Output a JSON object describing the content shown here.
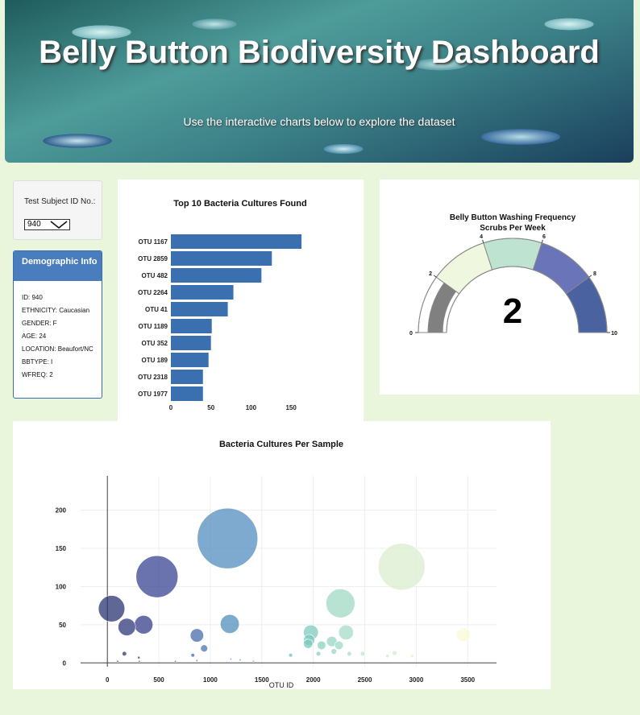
{
  "header": {
    "title": "Belly Button Biodiversity Dashboard",
    "subtitle": "Use the interactive charts below to explore the dataset"
  },
  "selector": {
    "label": "Test Subject ID No.:",
    "value": "940"
  },
  "demographics": {
    "title": "Demographic Info",
    "items": [
      "ID: 940",
      "ETHNICITY: Caucasian",
      "GENDER: F",
      "AGE: 24",
      "LOCATION: Beaufort/NC",
      "BBTYPE: I",
      "WFREQ: 2"
    ]
  },
  "colors": {
    "bar": "#3a6fb0",
    "axis": "#444",
    "grid": "#eeeeee"
  },
  "chart_data": [
    {
      "type": "bar",
      "orientation": "horizontal",
      "title": "Top 10 Bacteria Cultures Found",
      "categories": [
        "OTU 1167",
        "OTU 2859",
        "OTU 482",
        "OTU 2264",
        "OTU 41",
        "OTU 1189",
        "OTU 352",
        "OTU 189",
        "OTU 2318",
        "OTU 1977"
      ],
      "values": [
        163,
        126,
        113,
        78,
        71,
        51,
        50,
        47,
        40,
        40
      ],
      "xticks": [
        0,
        50,
        100,
        150
      ],
      "xlim": [
        0,
        170
      ]
    },
    {
      "type": "gauge",
      "title": "Belly Button Washing Frequency",
      "subtitle": "Scrubs Per Week",
      "value": 2,
      "value_label": "2",
      "range": [
        0,
        10
      ],
      "ticks": [
        0,
        2,
        4,
        6,
        8,
        10
      ],
      "bands": [
        {
          "from": 0,
          "to": 2,
          "color": "#ffffff"
        },
        {
          "from": 2,
          "to": 4,
          "color": "#eff7df"
        },
        {
          "from": 4,
          "to": 6,
          "color": "#bfe3d1"
        },
        {
          "from": 6,
          "to": 8,
          "color": "#6a74b8"
        },
        {
          "from": 8,
          "to": 10,
          "color": "#4a62a0"
        }
      ],
      "bar_color": "#808080"
    },
    {
      "type": "scatter",
      "title": "Bacteria Cultures Per Sample",
      "xlabel": "OTU ID",
      "xticks": [
        0,
        500,
        1000,
        1500,
        2000,
        2500,
        3000,
        3500
      ],
      "yticks": [
        0,
        50,
        100,
        150,
        200
      ],
      "xlim": [
        -260,
        3780
      ],
      "ylim": [
        -5,
        245
      ],
      "points": [
        {
          "x": 41,
          "y": 71
        },
        {
          "x": 189,
          "y": 47
        },
        {
          "x": 352,
          "y": 50
        },
        {
          "x": 482,
          "y": 113
        },
        {
          "x": 1167,
          "y": 163
        },
        {
          "x": 1189,
          "y": 51
        },
        {
          "x": 2859,
          "y": 126
        },
        {
          "x": 2264,
          "y": 78
        },
        {
          "x": 1977,
          "y": 40
        },
        {
          "x": 2318,
          "y": 40
        },
        {
          "x": 870,
          "y": 36
        },
        {
          "x": 940,
          "y": 19
        },
        {
          "x": 165,
          "y": 12
        },
        {
          "x": 305,
          "y": 7
        },
        {
          "x": 830,
          "y": 10
        },
        {
          "x": 1960,
          "y": 30
        },
        {
          "x": 1950,
          "y": 25
        },
        {
          "x": 2080,
          "y": 23
        },
        {
          "x": 2180,
          "y": 28
        },
        {
          "x": 2250,
          "y": 23
        },
        {
          "x": 2200,
          "y": 15
        },
        {
          "x": 2350,
          "y": 12
        },
        {
          "x": 2050,
          "y": 12
        },
        {
          "x": 1780,
          "y": 10
        },
        {
          "x": 3460,
          "y": 37
        },
        {
          "x": 2790,
          "y": 13
        },
        {
          "x": 2720,
          "y": 9
        },
        {
          "x": 2960,
          "y": 9
        },
        {
          "x": 2480,
          "y": 12
        },
        {
          "x": 1200,
          "y": 5
        },
        {
          "x": 1290,
          "y": 4
        },
        {
          "x": 870,
          "y": 3
        },
        {
          "x": 660,
          "y": 2
        },
        {
          "x": 310,
          "y": 2
        },
        {
          "x": 100,
          "y": 2
        },
        {
          "x": 1420,
          "y": 2
        }
      ]
    }
  ]
}
